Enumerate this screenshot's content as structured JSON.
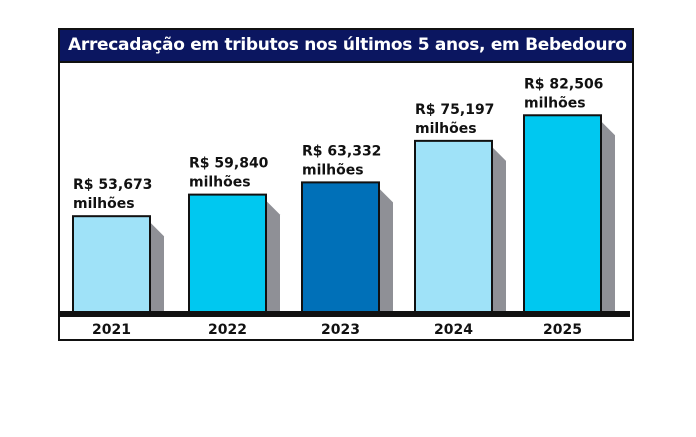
{
  "chart_data": {
    "type": "bar",
    "title": "Arrecadação em tributos nos últimos 5 anos, em Bebedouro",
    "categories": [
      "2021",
      "2022",
      "2023",
      "2024",
      "2025"
    ],
    "values": [
      53.673,
      59.84,
      63.332,
      75.197,
      82.506
    ],
    "data_labels": [
      [
        "R$ 53,673",
        "milhões"
      ],
      [
        "R$ 59,840",
        "milhões"
      ],
      [
        "R$ 63,332",
        "milhões"
      ],
      [
        "R$ 75,197",
        "milhões"
      ],
      [
        "R$ 82,506",
        "milhões"
      ]
    ],
    "unit": "milhões de R$",
    "colors": [
      "#9fe2f8",
      "#00c8f0",
      "#0070b8",
      "#9fe2f8",
      "#00c8f0"
    ],
    "shadow_color": "#8f9096",
    "title_bg": "#0b1660",
    "grid": false,
    "legend": "none",
    "yaxis_visible": false
  }
}
